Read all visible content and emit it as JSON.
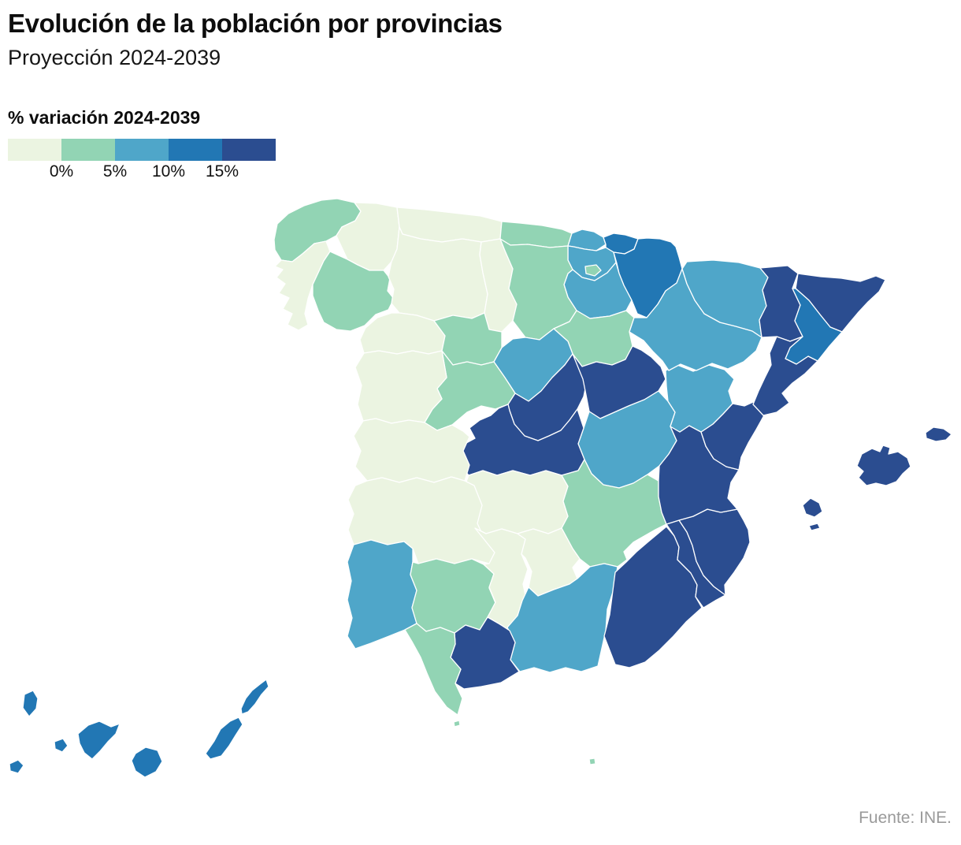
{
  "header": {
    "title": "Evolución de la población por provincias",
    "subtitle": "Proyección 2024-2039"
  },
  "legend": {
    "title": "% variación 2024-2039",
    "tick_labels": [
      "0%",
      "5%",
      "10%",
      "15%"
    ],
    "categories": [
      {
        "id": "lt0",
        "range": "<0%",
        "color": "#EBF4E1"
      },
      {
        "id": "0-5",
        "range": "0-5%",
        "color": "#92D4B4"
      },
      {
        "id": "5-10",
        "range": "5-10%",
        "color": "#4FA6C9"
      },
      {
        "id": "10-15",
        "range": "10-15%",
        "color": "#2277B4"
      },
      {
        "id": "gt15",
        "range": ">15%",
        "color": "#2B4D90"
      }
    ]
  },
  "source": {
    "text": "Fuente: INE."
  },
  "map": {
    "name": "Spain provinces choropleth",
    "provinces": [
      {
        "id": "a-coruna",
        "name": "A Coruña",
        "category": "0-5"
      },
      {
        "id": "lugo",
        "name": "Lugo",
        "category": "lt0"
      },
      {
        "id": "pontevedra",
        "name": "Pontevedra",
        "category": "lt0"
      },
      {
        "id": "ourense",
        "name": "Ourense",
        "category": "0-5"
      },
      {
        "id": "asturias",
        "name": "Asturias",
        "category": "lt0"
      },
      {
        "id": "cantabria",
        "name": "Cantabria",
        "category": "0-5"
      },
      {
        "id": "bizkaia",
        "name": "Bizkaia",
        "category": "5-10"
      },
      {
        "id": "gipuzkoa",
        "name": "Gipuzkoa",
        "category": "10-15"
      },
      {
        "id": "alava",
        "name": "Álava",
        "category": "5-10"
      },
      {
        "id": "navarra",
        "name": "Navarra",
        "category": "10-15"
      },
      {
        "id": "la-rioja",
        "name": "La Rioja",
        "category": "5-10"
      },
      {
        "id": "leon",
        "name": "León",
        "category": "lt0"
      },
      {
        "id": "palencia",
        "name": "Palencia",
        "category": "lt0"
      },
      {
        "id": "burgos",
        "name": "Burgos",
        "category": "0-5"
      },
      {
        "id": "zamora",
        "name": "Zamora",
        "category": "lt0"
      },
      {
        "id": "valladolid",
        "name": "Valladolid",
        "category": "0-5"
      },
      {
        "id": "soria",
        "name": "Soria",
        "category": "0-5"
      },
      {
        "id": "segovia",
        "name": "Segovia",
        "category": "5-10"
      },
      {
        "id": "avila",
        "name": "Ávila",
        "category": "0-5"
      },
      {
        "id": "salamanca",
        "name": "Salamanca",
        "category": "lt0"
      },
      {
        "id": "madrid",
        "name": "Madrid",
        "category": "gt15"
      },
      {
        "id": "guadalajara",
        "name": "Guadalajara",
        "category": "gt15"
      },
      {
        "id": "cuenca",
        "name": "Cuenca",
        "category": "5-10"
      },
      {
        "id": "toledo",
        "name": "Toledo",
        "category": "gt15"
      },
      {
        "id": "ciudad-real",
        "name": "Ciudad Real",
        "category": "lt0"
      },
      {
        "id": "albacete",
        "name": "Albacete",
        "category": "0-5"
      },
      {
        "id": "caceres",
        "name": "Cáceres",
        "category": "lt0"
      },
      {
        "id": "badajoz",
        "name": "Badajoz",
        "category": "lt0"
      },
      {
        "id": "huelva",
        "name": "Huelva",
        "category": "5-10"
      },
      {
        "id": "sevilla",
        "name": "Sevilla",
        "category": "0-5"
      },
      {
        "id": "cordoba",
        "name": "Córdoba",
        "category": "lt0"
      },
      {
        "id": "jaen",
        "name": "Jaén",
        "category": "lt0"
      },
      {
        "id": "granada",
        "name": "Granada",
        "category": "5-10"
      },
      {
        "id": "malaga",
        "name": "Málaga",
        "category": "gt15"
      },
      {
        "id": "cadiz",
        "name": "Cádiz",
        "category": "0-5"
      },
      {
        "id": "almeria",
        "name": "Almería",
        "category": "gt15"
      },
      {
        "id": "murcia",
        "name": "Murcia",
        "category": "gt15"
      },
      {
        "id": "alicante",
        "name": "Alicante",
        "category": "gt15"
      },
      {
        "id": "valencia",
        "name": "Valencia",
        "category": "gt15"
      },
      {
        "id": "castellon",
        "name": "Castellón",
        "category": "gt15"
      },
      {
        "id": "teruel",
        "name": "Teruel",
        "category": "5-10"
      },
      {
        "id": "zaragoza",
        "name": "Zaragoza",
        "category": "5-10"
      },
      {
        "id": "huesca",
        "name": "Huesca",
        "category": "5-10"
      },
      {
        "id": "lleida",
        "name": "Lleida",
        "category": "gt15"
      },
      {
        "id": "girona",
        "name": "Girona",
        "category": "gt15"
      },
      {
        "id": "barcelona",
        "name": "Barcelona",
        "category": "10-15"
      },
      {
        "id": "tarragona",
        "name": "Tarragona",
        "category": "gt15"
      },
      {
        "id": "illes-balears",
        "name": "Illes Balears",
        "category": "gt15"
      },
      {
        "id": "sc-tenerife",
        "name": "Santa Cruz de Tenerife",
        "category": "10-15"
      },
      {
        "id": "las-palmas",
        "name": "Las Palmas",
        "category": "10-15"
      },
      {
        "id": "ceuta",
        "name": "Ceuta",
        "category": "0-5"
      },
      {
        "id": "melilla",
        "name": "Melilla",
        "category": "0-5"
      }
    ]
  }
}
